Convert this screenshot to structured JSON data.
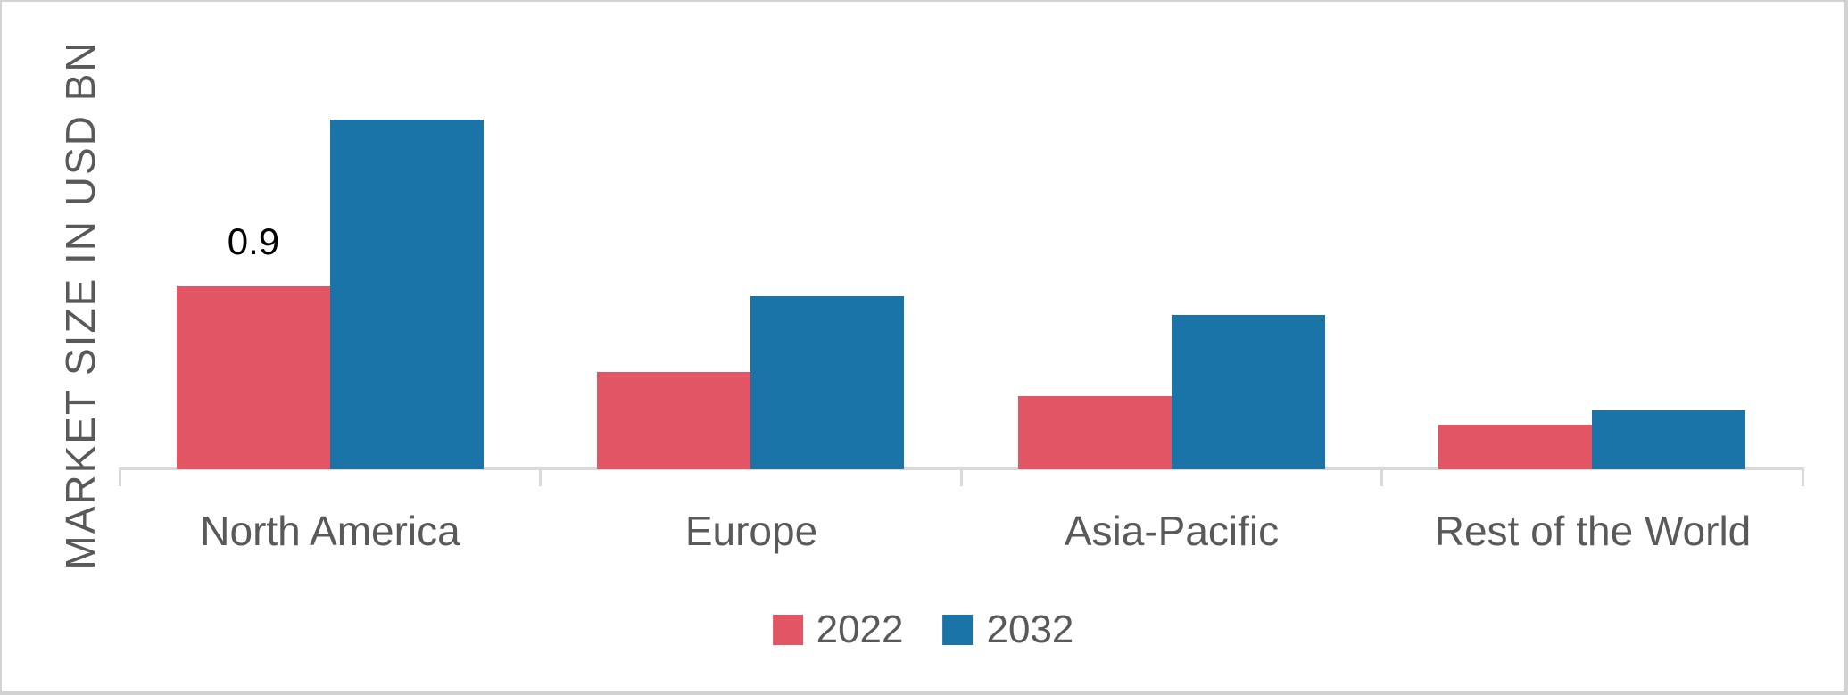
{
  "figure": {
    "background": "#ffffff",
    "frame_color": "#d2d2d2"
  },
  "chart_data": {
    "type": "bar",
    "title": "",
    "xlabel": "",
    "ylabel": "MARKET SIZE IN USD BN",
    "categories": [
      "North America",
      "Europe",
      "Asia-Pacific",
      "Rest of the World"
    ],
    "series": [
      {
        "name": "2022",
        "color": "#e25565",
        "values": [
          0.9,
          0.48,
          0.36,
          0.22
        ]
      },
      {
        "name": "2032",
        "color": "#1b74a8",
        "values": [
          1.72,
          0.85,
          0.76,
          0.29
        ]
      }
    ],
    "data_labels": [
      {
        "series_index": 0,
        "category_index": 0,
        "text": "0.9"
      }
    ],
    "ylim": [
      0,
      2.0
    ],
    "grid": false,
    "y_ticks_visible": false,
    "legend_position": "bottom",
    "axis_color": "#d9d9d9",
    "tick_color": "#d9d9d9",
    "label_color": "#595959",
    "data_label_color": "#000000"
  }
}
